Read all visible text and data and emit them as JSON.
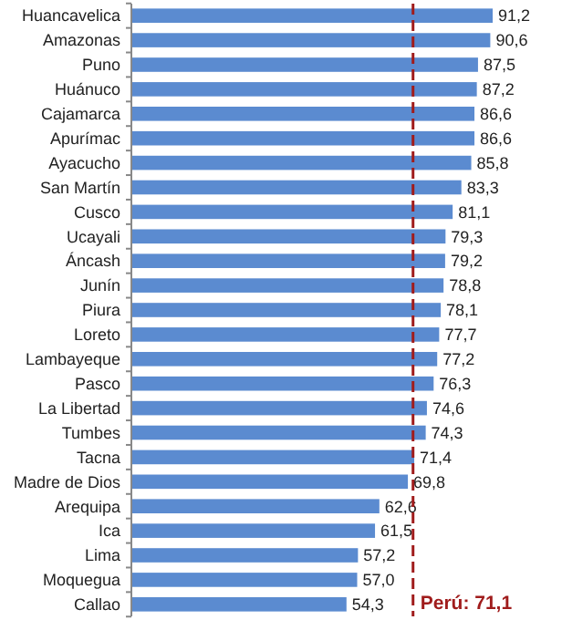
{
  "chart_data": {
    "type": "bar",
    "orientation": "horizontal",
    "categories": [
      "Huancavelica",
      "Amazonas",
      "Puno",
      "Huánuco",
      "Cajamarca",
      "Apurímac",
      "Ayacucho",
      "San Martín",
      "Cusco",
      "Ucayali",
      "Áncash",
      "Junín",
      "Piura",
      "Loreto",
      "Lambayeque",
      "Pasco",
      "La Libertad",
      "Tumbes",
      "Tacna",
      "Madre de Dios",
      "Arequipa",
      "Ica",
      "Lima",
      "Moquegua",
      "Callao"
    ],
    "values": [
      91.2,
      90.6,
      87.5,
      87.2,
      86.6,
      86.6,
      85.8,
      83.3,
      81.1,
      79.3,
      79.2,
      78.8,
      78.1,
      77.7,
      77.2,
      76.3,
      74.6,
      74.3,
      71.4,
      69.8,
      62.6,
      61.5,
      57.2,
      57.0,
      54.3
    ],
    "value_labels": [
      "91,2",
      "90,6",
      "87,5",
      "87,2",
      "86,6",
      "86,6",
      "85,8",
      "83,3",
      "81,1",
      "79,3",
      "79,2",
      "78,8",
      "78,1",
      "77,7",
      "77,2",
      "76,3",
      "74,6",
      "74,3",
      "71,4",
      "69,8",
      "62,6",
      "61,5",
      "57,2",
      "57,0",
      "54,3"
    ],
    "color": "#5b8bd0",
    "tick_labels": "y",
    "ref_lines": [
      {
        "axis": "x",
        "value": 71.1,
        "label": "Perú: 71,1",
        "color": "#a01c1c",
        "line_style": "dashed"
      }
    ]
  }
}
